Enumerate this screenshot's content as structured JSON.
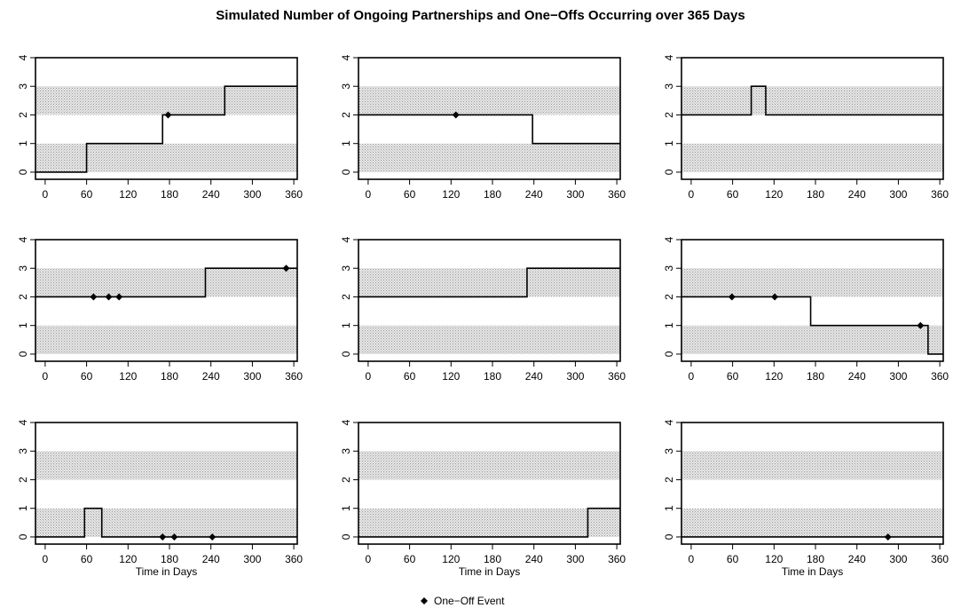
{
  "chart_data": {
    "type": "line",
    "title": "Simulated Number of Ongoing Partnerships and One−Offs Occurring over 365 Days",
    "xlabel": "Time in Days",
    "xlim": [
      0,
      365
    ],
    "ylim": [
      0,
      4
    ],
    "xticks": [
      "0",
      "60",
      "120",
      "180",
      "240",
      "300",
      "360"
    ],
    "yticks": [
      "0",
      "1",
      "2",
      "3",
      "4"
    ],
    "shaded_bands": [
      [
        0,
        1
      ],
      [
        2,
        3
      ]
    ],
    "shade_color": "#d4d4d4",
    "line_color": "#000000",
    "legend": {
      "marker": "diamond",
      "label": "One−Off Event",
      "placement": "bottom-center"
    },
    "panels": [
      {
        "steps": [
          [
            0,
            0
          ],
          [
            60,
            1
          ],
          [
            170,
            2
          ],
          [
            260,
            3
          ],
          [
            365,
            3
          ]
        ],
        "one_offs": [
          [
            178,
            2
          ]
        ]
      },
      {
        "steps": [
          [
            0,
            2
          ],
          [
            238,
            1
          ],
          [
            365,
            1
          ]
        ],
        "one_offs": [
          [
            127,
            2
          ]
        ]
      },
      {
        "steps": [
          [
            0,
            2
          ],
          [
            87,
            3
          ],
          [
            108,
            2
          ],
          [
            365,
            2
          ]
        ],
        "one_offs": []
      },
      {
        "steps": [
          [
            0,
            2
          ],
          [
            232,
            3
          ],
          [
            365,
            3
          ]
        ],
        "one_offs": [
          [
            70,
            2
          ],
          [
            92,
            2
          ],
          [
            107,
            2
          ],
          [
            349,
            3
          ]
        ]
      },
      {
        "steps": [
          [
            0,
            2
          ],
          [
            230,
            3
          ],
          [
            365,
            3
          ]
        ],
        "one_offs": []
      },
      {
        "steps": [
          [
            0,
            2
          ],
          [
            173,
            1
          ],
          [
            343,
            0
          ],
          [
            365,
            0
          ]
        ],
        "one_offs": [
          [
            59,
            2
          ],
          [
            121,
            2
          ],
          [
            332,
            1
          ]
        ]
      },
      {
        "steps": [
          [
            0,
            0
          ],
          [
            57,
            1
          ],
          [
            82,
            0
          ],
          [
            365,
            0
          ]
        ],
        "one_offs": [
          [
            170,
            0
          ],
          [
            187,
            0
          ],
          [
            242,
            0
          ]
        ]
      },
      {
        "steps": [
          [
            0,
            0
          ],
          [
            318,
            1
          ],
          [
            365,
            1
          ]
        ],
        "one_offs": []
      },
      {
        "steps": [
          [
            0,
            0
          ],
          [
            365,
            0
          ]
        ],
        "one_offs": [
          [
            285,
            0
          ]
        ]
      }
    ]
  }
}
